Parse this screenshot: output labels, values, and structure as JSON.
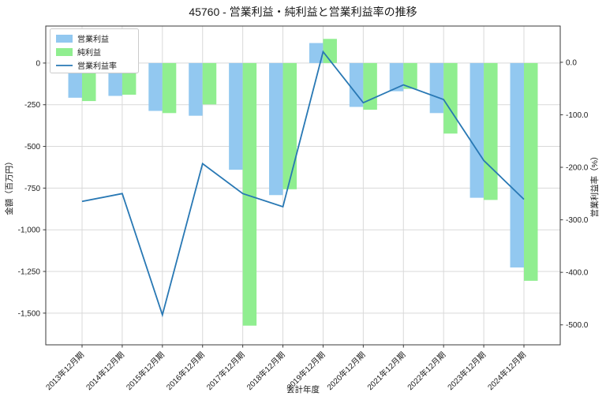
{
  "title": "45760 - 営業利益・純利益と営業利益率の推移",
  "figure": {
    "background": "#ffffff",
    "text_color": "#1a1a1a",
    "grid_color": "#d9d9d9",
    "spine_color": "#3a3a3a",
    "legend_border_color": "#cccccc"
  },
  "chart_data": {
    "type": "bar+line",
    "title": "45760 - 営業利益・純利益と営業利益率の推移",
    "xlabel": "会計年度",
    "ylabel_left": "金額（百万円）",
    "ylabel_right": "営業利益率（%）",
    "grid": true,
    "legend_position": "upper-left",
    "categories": [
      "2013年12月期",
      "2014年12月期",
      "2015年12月期",
      "2016年12月期",
      "2017年12月期",
      "2018年12月期",
      "2019年12月期",
      "2020年12月期",
      "2021年12月期",
      "2022年12月期",
      "2023年12月期",
      "2024年12月期"
    ],
    "series": [
      {
        "key": "operating-profit",
        "name": "営業利益",
        "type": "bar",
        "axis": "left",
        "color": "#92c8f0",
        "values": [
          -208,
          -197,
          -287,
          -316,
          -640,
          -792,
          120,
          -263,
          -169,
          -300,
          -808,
          -1226
        ]
      },
      {
        "key": "net-profit",
        "name": "純利益",
        "type": "bar",
        "axis": "left",
        "color": "#90ee90",
        "values": [
          -228,
          -190,
          -300,
          -248,
          -1575,
          -757,
          145,
          -280,
          -155,
          -423,
          -821,
          -1306
        ]
      },
      {
        "key": "operating-margin",
        "name": "営業利益率",
        "type": "line",
        "axis": "right",
        "color": "#2878b4",
        "values": [
          -265,
          -250,
          -481,
          -193,
          -250,
          -275,
          20,
          -77,
          -43,
          -71,
          -187,
          -261
        ]
      }
    ],
    "ylim_left": [
      -1690,
      222
    ],
    "ylim_right": [
      -538,
      69
    ],
    "yticks_left": [
      0,
      -250,
      -500,
      -750,
      -1000,
      -1250,
      -1500
    ],
    "ytick_labels_left": [
      "0",
      "-250",
      "-500",
      "-750",
      "-1,000",
      "-1,250",
      "-1,500"
    ],
    "yticks_right": [
      0,
      -100,
      -200,
      -300,
      -400,
      -500
    ],
    "ytick_labels_right": [
      "0.0",
      "-100.0",
      "-200.0",
      "-300.0",
      "-400.0",
      "-500.0"
    ]
  }
}
